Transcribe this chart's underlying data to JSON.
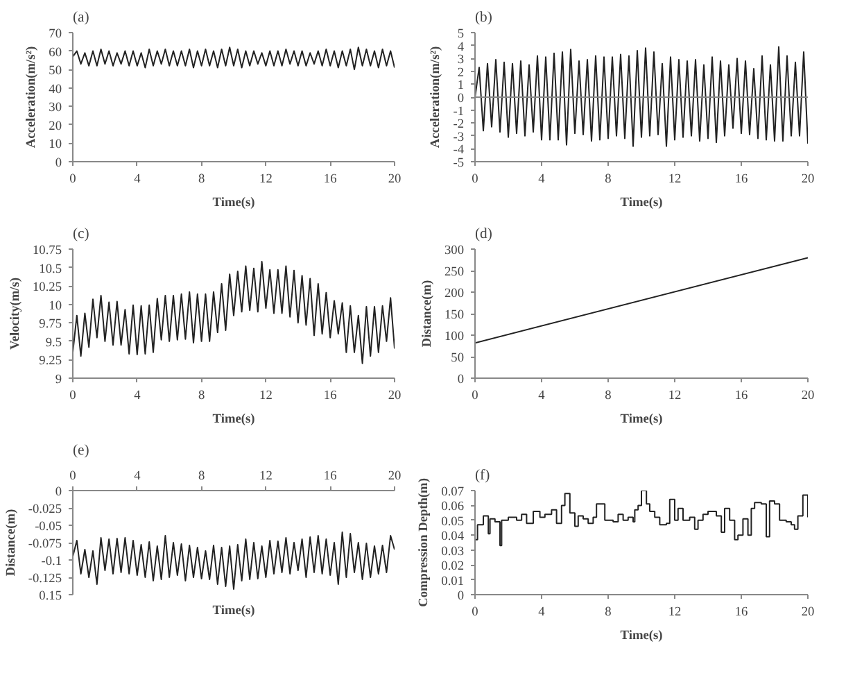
{
  "chart_data": [
    {
      "type": "line",
      "title": "(a)",
      "xlabel": "Time(s)",
      "ylabel": "Acceleration(m/s²)",
      "color": "#222222",
      "xlim": [
        0,
        20
      ],
      "ylim": [
        0,
        70
      ],
      "xticks": [
        0,
        4,
        8,
        12,
        16,
        20
      ],
      "yticks": [
        0,
        10,
        20,
        30,
        40,
        50,
        60,
        70
      ],
      "x": [
        0,
        0.25,
        0.5,
        0.75,
        1,
        1.25,
        1.5,
        1.75,
        2,
        2.25,
        2.5,
        2.75,
        3,
        3.25,
        3.5,
        3.75,
        4,
        4.25,
        4.5,
        4.75,
        5,
        5.25,
        5.5,
        5.75,
        6,
        6.25,
        6.5,
        6.75,
        7,
        7.25,
        7.5,
        7.75,
        8,
        8.25,
        8.5,
        8.75,
        9,
        9.25,
        9.5,
        9.75,
        10,
        10.25,
        10.5,
        10.75,
        11,
        11.25,
        11.5,
        11.75,
        12,
        12.25,
        12.5,
        12.75,
        13,
        13.25,
        13.5,
        13.75,
        14,
        14.25,
        14.5,
        14.75,
        15,
        15.25,
        15.5,
        15.75,
        16,
        16.25,
        16.5,
        16.75,
        17,
        17.25,
        17.5,
        17.75,
        18,
        18.25,
        18.5,
        18.75,
        19,
        19.25,
        19.5,
        19.75,
        20
      ],
      "values": [
        57,
        60,
        53,
        59,
        52,
        60,
        52,
        61,
        53,
        60,
        52,
        59,
        53,
        60,
        52,
        60,
        52,
        59,
        51,
        61,
        52,
        60,
        53,
        61,
        52,
        60,
        52,
        60,
        52,
        61,
        51,
        60,
        52,
        61,
        52,
        60,
        51,
        61,
        52,
        62,
        52,
        61,
        51,
        60,
        52,
        60,
        53,
        59,
        52,
        60,
        52,
        60,
        52,
        61,
        53,
        60,
        52,
        60,
        52,
        59,
        53,
        60,
        52,
        61,
        52,
        60,
        51,
        60,
        52,
        61,
        50,
        62,
        52,
        61,
        52,
        60,
        51,
        61,
        52,
        60,
        51
      ]
    },
    {
      "type": "line",
      "title": "(b)",
      "xlabel": "Time(s)",
      "ylabel": "Acceleration(m/s²)",
      "color": "#222222",
      "xlim": [
        0,
        20
      ],
      "ylim": [
        -5,
        5
      ],
      "xticks": [
        0,
        4,
        8,
        12,
        16,
        20
      ],
      "yticks": [
        -5,
        -4,
        -3,
        -2,
        -1,
        0,
        1,
        2,
        3,
        4,
        5
      ],
      "ref_lines": [
        {
          "axis": "y",
          "value": 0,
          "color": "#888888"
        }
      ],
      "x": [
        0,
        0.25,
        0.5,
        0.75,
        1,
        1.25,
        1.5,
        1.75,
        2,
        2.25,
        2.5,
        2.75,
        3,
        3.25,
        3.5,
        3.75,
        4,
        4.25,
        4.5,
        4.75,
        5,
        5.25,
        5.5,
        5.75,
        6,
        6.25,
        6.5,
        6.75,
        7,
        7.25,
        7.5,
        7.75,
        8,
        8.25,
        8.5,
        8.75,
        9,
        9.25,
        9.5,
        9.75,
        10,
        10.25,
        10.5,
        10.75,
        11,
        11.25,
        11.5,
        11.75,
        12,
        12.25,
        12.5,
        12.75,
        13,
        13.25,
        13.5,
        13.75,
        14,
        14.25,
        14.5,
        14.75,
        15,
        15.25,
        15.5,
        15.75,
        16,
        16.25,
        16.5,
        16.75,
        17,
        17.25,
        17.5,
        17.75,
        18,
        18.25,
        18.5,
        18.75,
        19,
        19.25,
        19.5,
        19.75,
        20
      ],
      "values": [
        0,
        2.3,
        -2.6,
        2.6,
        -2.3,
        2.9,
        -2.7,
        2.7,
        -3.1,
        2.6,
        -2.8,
        2.8,
        -3.0,
        2.5,
        -2.7,
        3.2,
        -3.3,
        3.1,
        -3.3,
        3.4,
        -3.3,
        3.5,
        -3.7,
        3.7,
        -2.8,
        2.8,
        -2.9,
        2.9,
        -3.4,
        3.2,
        -3.3,
        3.1,
        -3.2,
        3.1,
        -3.0,
        3.3,
        -3.2,
        3.2,
        -3.8,
        3.6,
        -3.1,
        3.8,
        -3.0,
        3.5,
        -2.9,
        2.6,
        -3.8,
        3.1,
        -3.3,
        2.9,
        -3.1,
        2.8,
        -3.0,
        2.9,
        -3.4,
        2.5,
        -3.2,
        3.1,
        -3.5,
        2.8,
        -3.0,
        2.5,
        -2.4,
        3.0,
        -2.8,
        2.8,
        -2.9,
        2.2,
        -3.2,
        3.2,
        -3.3,
        2.5,
        -3.4,
        3.9,
        -3.4,
        3.2,
        -3.0,
        2.7,
        -3.0,
        3.5,
        -3.6
      ]
    },
    {
      "type": "line",
      "title": "(c)",
      "xlabel": "Time(s)",
      "ylabel": "Velocity(m/s)",
      "color": "#222222",
      "xlim": [
        0,
        20
      ],
      "ylim": [
        9,
        10.75
      ],
      "xticks": [
        0,
        4,
        8,
        12,
        16,
        20
      ],
      "yticks": [
        9,
        9.25,
        9.5,
        9.75,
        10,
        10.25,
        10.5,
        10.75
      ],
      "x": [
        0,
        0.25,
        0.5,
        0.75,
        1,
        1.25,
        1.5,
        1.75,
        2,
        2.25,
        2.5,
        2.75,
        3,
        3.25,
        3.5,
        3.75,
        4,
        4.25,
        4.5,
        4.75,
        5,
        5.25,
        5.5,
        5.75,
        6,
        6.25,
        6.5,
        6.75,
        7,
        7.25,
        7.5,
        7.75,
        8,
        8.25,
        8.5,
        8.75,
        9,
        9.25,
        9.5,
        9.75,
        10,
        10.25,
        10.5,
        10.75,
        11,
        11.25,
        11.5,
        11.75,
        12,
        12.25,
        12.5,
        12.75,
        13,
        13.25,
        13.5,
        13.75,
        14,
        14.25,
        14.5,
        14.75,
        15,
        15.25,
        15.5,
        15.75,
        16,
        16.25,
        16.5,
        16.75,
        17,
        17.25,
        17.5,
        17.75,
        18,
        18.25,
        18.5,
        18.75,
        19,
        19.25,
        19.5,
        19.75,
        20
      ],
      "values": [
        9.35,
        9.85,
        9.3,
        9.88,
        9.42,
        10.07,
        9.55,
        10.12,
        9.5,
        10.03,
        9.45,
        10.04,
        9.45,
        9.93,
        9.33,
        9.99,
        9.32,
        9.98,
        9.33,
        9.99,
        9.35,
        10.08,
        9.52,
        10.12,
        9.5,
        10.12,
        9.52,
        10.14,
        9.53,
        10.17,
        9.48,
        10.14,
        9.5,
        10.14,
        9.5,
        10.17,
        9.62,
        10.28,
        9.65,
        10.41,
        9.85,
        10.45,
        9.9,
        10.52,
        9.92,
        10.49,
        9.9,
        10.58,
        9.95,
        10.47,
        9.88,
        10.47,
        9.88,
        10.52,
        9.83,
        10.46,
        9.75,
        10.39,
        9.72,
        10.35,
        9.58,
        10.28,
        9.6,
        10.16,
        9.55,
        10.05,
        9.6,
        10.02,
        9.35,
        9.98,
        9.35,
        9.85,
        9.2,
        9.97,
        9.3,
        9.97,
        9.35,
        9.98,
        9.5,
        10.09,
        9.4
      ]
    },
    {
      "type": "line",
      "title": "(d)",
      "xlabel": "Time(s)",
      "ylabel": "Distance(m)",
      "color": "#222222",
      "xlim": [
        0,
        20
      ],
      "ylim": [
        0,
        300
      ],
      "xticks": [
        0,
        4,
        8,
        12,
        16,
        20
      ],
      "yticks": [
        0,
        50,
        100,
        150,
        200,
        250,
        300
      ],
      "x": [
        0,
        20
      ],
      "values": [
        82,
        280
      ]
    },
    {
      "type": "line",
      "title": "(e)",
      "xlabel": "Time(s)",
      "ylabel": "Distance(m)",
      "color": "#222222",
      "xlim": [
        0,
        20
      ],
      "ylim": [
        -0.15,
        0
      ],
      "xticks": [
        0,
        4,
        8,
        12,
        16,
        20
      ],
      "yticks": [
        {
          "value": -0.15,
          "label": "0.15"
        },
        -0.125,
        -0.1,
        -0.075,
        -0.05,
        -0.025,
        0
      ],
      "x": [
        0,
        0.25,
        0.5,
        0.75,
        1,
        1.25,
        1.5,
        1.75,
        2,
        2.25,
        2.5,
        2.75,
        3,
        3.25,
        3.5,
        3.75,
        4,
        4.25,
        4.5,
        4.75,
        5,
        5.25,
        5.5,
        5.75,
        6,
        6.25,
        6.5,
        6.75,
        7,
        7.25,
        7.5,
        7.75,
        8,
        8.25,
        8.5,
        8.75,
        9,
        9.25,
        9.5,
        9.75,
        10,
        10.25,
        10.5,
        10.75,
        11,
        11.25,
        11.5,
        11.75,
        12,
        12.25,
        12.5,
        12.75,
        13,
        13.25,
        13.5,
        13.75,
        14,
        14.25,
        14.5,
        14.75,
        15,
        15.25,
        15.5,
        15.75,
        16,
        16.25,
        16.5,
        16.75,
        17,
        17.25,
        17.5,
        17.75,
        18,
        18.25,
        18.5,
        18.75,
        19,
        19.25,
        19.5,
        19.75,
        20
      ],
      "values": [
        -0.095,
        -0.072,
        -0.12,
        -0.085,
        -0.125,
        -0.087,
        -0.135,
        -0.068,
        -0.115,
        -0.07,
        -0.12,
        -0.069,
        -0.118,
        -0.068,
        -0.12,
        -0.072,
        -0.122,
        -0.078,
        -0.125,
        -0.074,
        -0.13,
        -0.08,
        -0.128,
        -0.065,
        -0.125,
        -0.075,
        -0.122,
        -0.077,
        -0.13,
        -0.079,
        -0.125,
        -0.082,
        -0.127,
        -0.087,
        -0.128,
        -0.079,
        -0.135,
        -0.082,
        -0.138,
        -0.08,
        -0.142,
        -0.078,
        -0.13,
        -0.07,
        -0.128,
        -0.075,
        -0.127,
        -0.08,
        -0.125,
        -0.072,
        -0.12,
        -0.073,
        -0.118,
        -0.068,
        -0.12,
        -0.075,
        -0.115,
        -0.07,
        -0.125,
        -0.067,
        -0.118,
        -0.065,
        -0.12,
        -0.07,
        -0.122,
        -0.075,
        -0.135,
        -0.06,
        -0.125,
        -0.062,
        -0.118,
        -0.075,
        -0.128,
        -0.076,
        -0.125,
        -0.08,
        -0.12,
        -0.079,
        -0.118,
        -0.065,
        -0.085
      ]
    },
    {
      "type": "step",
      "title": "(f)",
      "xlabel": "Time(s)",
      "ylabel": "Compression Depth(m)",
      "color": "#222222",
      "xlim": [
        0,
        20
      ],
      "ylim": [
        0,
        0.07
      ],
      "xticks": [
        0,
        4,
        8,
        12,
        16,
        20
      ],
      "yticks": [
        0,
        0.01,
        0.02,
        0.03,
        0.04,
        0.05,
        0.06,
        0.07
      ],
      "x": [
        0,
        0.15,
        0.5,
        0.8,
        0.9,
        1.2,
        1.5,
        1.6,
        2.0,
        2.5,
        2.8,
        3.1,
        3.5,
        3.9,
        4.2,
        4.6,
        4.9,
        5.2,
        5.4,
        5.7,
        6.0,
        6.2,
        6.5,
        6.8,
        7.1,
        7.3,
        7.8,
        8.3,
        8.6,
        8.9,
        9.2,
        9.5,
        9.6,
        9.8,
        10.0,
        10.3,
        10.5,
        10.8,
        11.1,
        11.5,
        11.7,
        12.0,
        12.2,
        12.5,
        12.9,
        13.2,
        13.4,
        13.7,
        14.0,
        14.5,
        14.8,
        15.0,
        15.3,
        15.6,
        15.8,
        16.1,
        16.4,
        16.6,
        16.8,
        17.2,
        17.5,
        17.7,
        18.0,
        18.3,
        18.7,
        19.0,
        19.2,
        19.4,
        19.7,
        20.0
      ],
      "values": [
        0.037,
        0.047,
        0.053,
        0.041,
        0.051,
        0.049,
        0.033,
        0.05,
        0.052,
        0.05,
        0.054,
        0.048,
        0.056,
        0.052,
        0.054,
        0.057,
        0.048,
        0.06,
        0.068,
        0.055,
        0.046,
        0.053,
        0.051,
        0.048,
        0.052,
        0.061,
        0.05,
        0.049,
        0.054,
        0.05,
        0.052,
        0.049,
        0.057,
        0.06,
        0.07,
        0.061,
        0.056,
        0.052,
        0.047,
        0.048,
        0.064,
        0.05,
        0.058,
        0.05,
        0.052,
        0.044,
        0.05,
        0.054,
        0.056,
        0.053,
        0.042,
        0.058,
        0.05,
        0.037,
        0.04,
        0.051,
        0.04,
        0.058,
        0.062,
        0.061,
        0.039,
        0.063,
        0.061,
        0.05,
        0.049,
        0.047,
        0.044,
        0.053,
        0.067,
        0.052
      ]
    }
  ]
}
